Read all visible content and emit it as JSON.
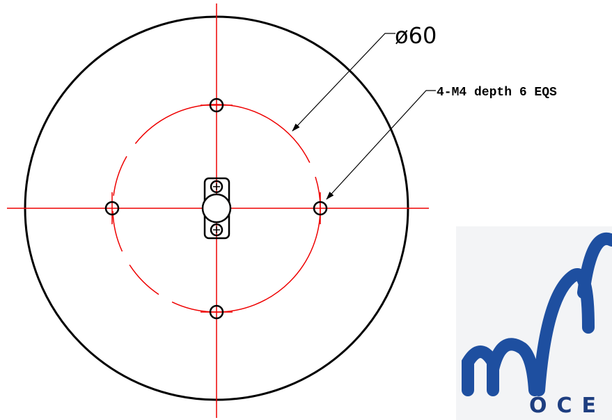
{
  "labels": {
    "diameter": "ø60",
    "holes": "4-M4 depth 6 EQS"
  },
  "logo": {
    "text": "OCE"
  }
}
